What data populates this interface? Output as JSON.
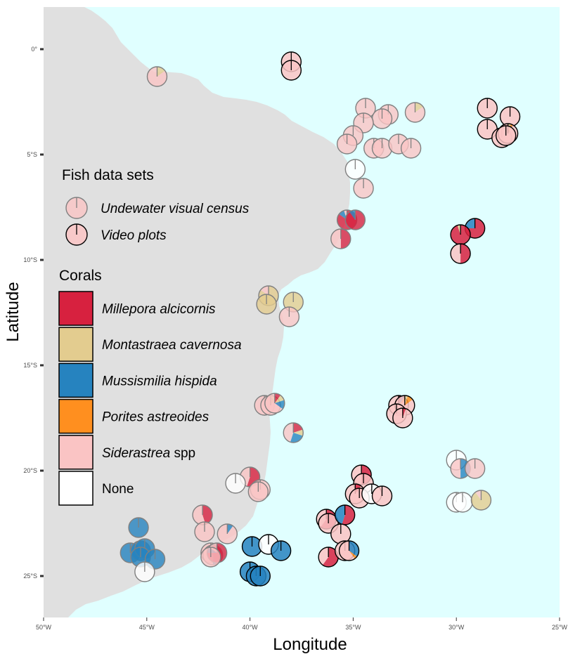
{
  "axes": {
    "xlabel": "Longitude",
    "ylabel": "Latitude",
    "x_ticks": [
      "50°W",
      "45°W",
      "40°W",
      "35°W",
      "30°W",
      "25°W"
    ],
    "y_ticks": [
      "0°",
      "5°S",
      "10°S",
      "15°S",
      "20°S",
      "25°S"
    ]
  },
  "colors": {
    "ocean": "#e0ffff",
    "land": "#e0e0e0",
    "millepora": "#d7213f",
    "montastraea": "#e3cc8f",
    "mussismilia": "#2683bf",
    "porites": "#ff8f1f",
    "siderastrea": "#fac4c4",
    "none": "#ffffff"
  },
  "legend": {
    "fish_title": "Fish data sets",
    "fish_items": [
      {
        "label": "Undewater visual census",
        "style": "uvc"
      },
      {
        "label": "Video plots",
        "style": "video"
      }
    ],
    "coral_title": "Corals",
    "coral_items": [
      {
        "italic": "Millepora alcicornis",
        "plain": "",
        "color": "#d7213f"
      },
      {
        "italic": "Montastraea cavernosa",
        "plain": "",
        "color": "#e3cc8f"
      },
      {
        "italic": "Mussismilia hispida",
        "plain": "",
        "color": "#2683bf"
      },
      {
        "italic": "Porites astreoides",
        "plain": "",
        "color": "#ff8f1f"
      },
      {
        "italic": "Siderastrea",
        "plain": " spp",
        "color": "#fac4c4"
      },
      {
        "italic": "",
        "plain": "None",
        "color": "#ffffff"
      }
    ]
  },
  "chart_data": {
    "type": "scatter",
    "xlim": [
      -50,
      -25
    ],
    "ylim": [
      -27,
      2
    ],
    "xlabel": "Longitude",
    "ylabel": "Latitude",
    "grid": false,
    "legend_placement": "left",
    "series_order": [
      "millepora",
      "montastraea",
      "mussismilia",
      "porites",
      "siderastrea",
      "none"
    ],
    "points": [
      {
        "lon": -44.5,
        "lat": -1.3,
        "ds": "uvc",
        "c": {
          "montastraea": 0.15,
          "siderastrea": 0.85
        }
      },
      {
        "lon": -38.0,
        "lat": -0.6,
        "ds": "video",
        "c": {
          "siderastrea": 1
        }
      },
      {
        "lon": -38.0,
        "lat": -1.0,
        "ds": "video",
        "c": {
          "siderastrea": 1
        }
      },
      {
        "lon": -34.4,
        "lat": -2.8,
        "ds": "uvc",
        "c": {
          "siderastrea": 1
        }
      },
      {
        "lon": -33.3,
        "lat": -3.1,
        "ds": "uvc",
        "c": {
          "siderastrea": 1
        }
      },
      {
        "lon": -32.0,
        "lat": -3.0,
        "ds": "uvc",
        "c": {
          "montastraea": 0.15,
          "siderastrea": 0.85
        }
      },
      {
        "lon": -33.6,
        "lat": -3.3,
        "ds": "uvc",
        "c": {
          "siderastrea": 1
        }
      },
      {
        "lon": -34.5,
        "lat": -3.5,
        "ds": "uvc",
        "c": {
          "siderastrea": 1
        }
      },
      {
        "lon": -35.0,
        "lat": -4.1,
        "ds": "uvc",
        "c": {
          "siderastrea": 1
        }
      },
      {
        "lon": -35.3,
        "lat": -4.5,
        "ds": "uvc",
        "c": {
          "siderastrea": 1
        }
      },
      {
        "lon": -34.0,
        "lat": -4.7,
        "ds": "uvc",
        "c": {
          "siderastrea": 1
        }
      },
      {
        "lon": -33.6,
        "lat": -4.7,
        "ds": "uvc",
        "c": {
          "siderastrea": 1
        }
      },
      {
        "lon": -32.8,
        "lat": -4.5,
        "ds": "uvc",
        "c": {
          "siderastrea": 1
        }
      },
      {
        "lon": -32.2,
        "lat": -4.7,
        "ds": "uvc",
        "c": {
          "siderastrea": 1
        }
      },
      {
        "lon": -34.9,
        "lat": -5.7,
        "ds": "uvc",
        "c": {
          "none": 1
        }
      },
      {
        "lon": -34.5,
        "lat": -6.6,
        "ds": "uvc",
        "c": {
          "siderastrea": 1
        }
      },
      {
        "lon": -28.5,
        "lat": -2.8,
        "ds": "video",
        "c": {
          "siderastrea": 1
        }
      },
      {
        "lon": -27.4,
        "lat": -3.2,
        "ds": "video",
        "c": {
          "siderastrea": 1
        }
      },
      {
        "lon": -28.5,
        "lat": -3.8,
        "ds": "video",
        "c": {
          "siderastrea": 1
        }
      },
      {
        "lon": -27.8,
        "lat": -4.2,
        "ds": "video",
        "c": {
          "siderastrea": 1
        }
      },
      {
        "lon": -27.5,
        "lat": -4.0,
        "ds": "video",
        "c": {
          "montastraea": 0.05,
          "porites": 0.03,
          "siderastrea": 0.92
        }
      },
      {
        "lon": -27.6,
        "lat": -4.1,
        "ds": "video",
        "c": {
          "siderastrea": 1
        }
      },
      {
        "lon": -35.3,
        "lat": -8.1,
        "ds": "uvc",
        "c": {
          "millepora": 0.85,
          "mussismilia": 0.1,
          "siderastrea": 0.05
        }
      },
      {
        "lon": -34.9,
        "lat": -8.1,
        "ds": "uvc",
        "c": {
          "millepora": 0.9,
          "mussismilia": 0.1
        }
      },
      {
        "lon": -35.6,
        "lat": -9.0,
        "ds": "uvc",
        "c": {
          "millepora": 0.5,
          "siderastrea": 0.5
        }
      },
      {
        "lon": -29.1,
        "lat": -8.5,
        "ds": "video",
        "c": {
          "millepora": 0.75,
          "mussismilia": 0.25
        }
      },
      {
        "lon": -29.8,
        "lat": -8.8,
        "ds": "video",
        "c": {
          "millepora": 0.95,
          "montastraea": 0.05
        }
      },
      {
        "lon": -29.8,
        "lat": -9.7,
        "ds": "video",
        "c": {
          "millepora": 0.5,
          "siderastrea": 0.5
        }
      },
      {
        "lon": -39.1,
        "lat": -11.7,
        "ds": "uvc",
        "c": {
          "montastraea": 0.85,
          "siderastrea": 0.15
        }
      },
      {
        "lon": -39.2,
        "lat": -12.1,
        "ds": "uvc",
        "c": {
          "montastraea": 1
        }
      },
      {
        "lon": -37.9,
        "lat": -12.0,
        "ds": "uvc",
        "c": {
          "montastraea": 1
        }
      },
      {
        "lon": -38.1,
        "lat": -12.7,
        "ds": "uvc",
        "c": {
          "siderastrea": 1
        }
      },
      {
        "lon": -39.3,
        "lat": -16.9,
        "ds": "uvc",
        "c": {
          "siderastrea": 1
        }
      },
      {
        "lon": -39.0,
        "lat": -16.9,
        "ds": "uvc",
        "c": {
          "montastraea": 0.1,
          "siderastrea": 0.9
        }
      },
      {
        "lon": -38.8,
        "lat": -16.8,
        "ds": "uvc",
        "c": {
          "millepora": 0.1,
          "montastraea": 0.1,
          "mussismilia": 0.15,
          "siderastrea": 0.65
        }
      },
      {
        "lon": -37.9,
        "lat": -18.2,
        "ds": "uvc",
        "c": {
          "millepora": 0.2,
          "montastraea": 0.1,
          "mussismilia": 0.25,
          "siderastrea": 0.45
        }
      },
      {
        "lon": -32.8,
        "lat": -16.9,
        "ds": "video",
        "c": {
          "millepora": 0.05,
          "mussismilia": 0.05,
          "porites": 0.05,
          "siderastrea": 0.85
        }
      },
      {
        "lon": -32.5,
        "lat": -16.9,
        "ds": "video",
        "c": {
          "montastraea": 0.05,
          "porites": 0.1,
          "siderastrea": 0.85
        }
      },
      {
        "lon": -32.9,
        "lat": -17.3,
        "ds": "video",
        "c": {
          "siderastrea": 1
        }
      },
      {
        "lon": -32.6,
        "lat": -17.5,
        "ds": "video",
        "c": {
          "millepora": 0.05,
          "siderastrea": 0.95
        }
      },
      {
        "lon": -40.0,
        "lat": -20.3,
        "ds": "uvc",
        "c": {
          "millepora": 0.55,
          "siderastrea": 0.45
        }
      },
      {
        "lon": -40.7,
        "lat": -20.6,
        "ds": "uvc",
        "c": {
          "none": 1
        }
      },
      {
        "lon": -39.5,
        "lat": -20.9,
        "ds": "uvc",
        "c": {
          "siderastrea": 1
        }
      },
      {
        "lon": -39.6,
        "lat": -21.0,
        "ds": "uvc",
        "c": {
          "siderastrea": 1
        }
      },
      {
        "lon": -34.6,
        "lat": -20.2,
        "ds": "video",
        "c": {
          "millepora": 0.5,
          "siderastrea": 0.5
        }
      },
      {
        "lon": -34.5,
        "lat": -20.6,
        "ds": "video",
        "c": {
          "siderastrea": 1
        }
      },
      {
        "lon": -34.9,
        "lat": -21.1,
        "ds": "video",
        "c": {
          "millepora": 0.1,
          "siderastrea": 0.9
        }
      },
      {
        "lon": -34.7,
        "lat": -21.3,
        "ds": "video",
        "c": {
          "siderastrea": 1
        }
      },
      {
        "lon": -34.1,
        "lat": -21.1,
        "ds": "video",
        "c": {
          "none": 1
        }
      },
      {
        "lon": -33.6,
        "lat": -21.2,
        "ds": "video",
        "c": {
          "siderastrea": 1
        }
      },
      {
        "lon": -30.0,
        "lat": -19.5,
        "ds": "uvc",
        "c": {
          "none": 1
        }
      },
      {
        "lon": -29.8,
        "lat": -19.9,
        "ds": "uvc",
        "c": {
          "mussismilia": 0.5,
          "siderastrea": 0.5
        }
      },
      {
        "lon": -29.1,
        "lat": -19.9,
        "ds": "uvc",
        "c": {
          "siderastrea": 1
        }
      },
      {
        "lon": -30.0,
        "lat": -21.5,
        "ds": "uvc",
        "c": {
          "none": 1
        }
      },
      {
        "lon": -29.7,
        "lat": -21.5,
        "ds": "uvc",
        "c": {
          "none": 1
        }
      },
      {
        "lon": -28.8,
        "lat": -21.4,
        "ds": "uvc",
        "c": {
          "montastraea": 0.9,
          "siderastrea": 0.1
        }
      },
      {
        "lon": -42.3,
        "lat": -22.1,
        "ds": "uvc",
        "c": {
          "millepora": 0.45,
          "siderastrea": 0.55
        }
      },
      {
        "lon": -42.2,
        "lat": -22.9,
        "ds": "uvc",
        "c": {
          "siderastrea": 1
        }
      },
      {
        "lon": -41.1,
        "lat": -23.0,
        "ds": "uvc",
        "c": {
          "mussismilia": 0.1,
          "siderastrea": 0.9
        }
      },
      {
        "lon": -41.9,
        "lat": -23.9,
        "ds": "uvc",
        "c": {
          "siderastrea": 1
        }
      },
      {
        "lon": -41.8,
        "lat": -24.0,
        "ds": "uvc",
        "c": {
          "millepora": 0.45,
          "mussismilia": 0.05,
          "siderastrea": 0.5
        }
      },
      {
        "lon": -41.6,
        "lat": -23.9,
        "ds": "uvc",
        "c": {
          "millepora": 0.75,
          "mussismilia": 0.1,
          "siderastrea": 0.15
        }
      },
      {
        "lon": -41.9,
        "lat": -24.1,
        "ds": "uvc",
        "c": {
          "siderastrea": 1
        }
      },
      {
        "lon": -36.3,
        "lat": -22.3,
        "ds": "video",
        "c": {
          "millepora": 0.6,
          "siderastrea": 0.4
        }
      },
      {
        "lon": -36.2,
        "lat": -22.5,
        "ds": "video",
        "c": {
          "siderastrea": 1
        }
      },
      {
        "lon": -35.4,
        "lat": -22.1,
        "ds": "video",
        "c": {
          "millepora": 0.55,
          "mussismilia": 0.45
        }
      },
      {
        "lon": -35.6,
        "lat": -23.0,
        "ds": "video",
        "c": {
          "siderastrea": 1
        }
      },
      {
        "lon": -36.2,
        "lat": -24.1,
        "ds": "video",
        "c": {
          "millepora": 0.6,
          "siderastrea": 0.4
        }
      },
      {
        "lon": -35.4,
        "lat": -23.8,
        "ds": "video",
        "c": {
          "siderastrea": 1
        }
      },
      {
        "lon": -35.2,
        "lat": -23.8,
        "ds": "video",
        "c": {
          "mussismilia": 0.35,
          "porites": 0.05,
          "siderastrea": 0.6
        }
      },
      {
        "lon": -45.4,
        "lat": -22.7,
        "ds": "uvc",
        "c": {
          "mussismilia": 1
        }
      },
      {
        "lon": -45.8,
        "lat": -23.9,
        "ds": "uvc",
        "c": {
          "mussismilia": 1
        }
      },
      {
        "lon": -45.3,
        "lat": -23.8,
        "ds": "uvc",
        "c": {
          "mussismilia": 1
        }
      },
      {
        "lon": -45.1,
        "lat": -23.7,
        "ds": "uvc",
        "c": {
          "mussismilia": 1
        }
      },
      {
        "lon": -45.3,
        "lat": -24.1,
        "ds": "uvc",
        "c": {
          "mussismilia": 1
        }
      },
      {
        "lon": -44.6,
        "lat": -24.2,
        "ds": "uvc",
        "c": {
          "mussismilia": 1
        }
      },
      {
        "lon": -45.1,
        "lat": -24.8,
        "ds": "uvc",
        "c": {
          "none": 1
        }
      },
      {
        "lon": -39.9,
        "lat": -23.6,
        "ds": "video",
        "c": {
          "mussismilia": 1
        }
      },
      {
        "lon": -39.1,
        "lat": -23.5,
        "ds": "video",
        "c": {
          "none": 1
        }
      },
      {
        "lon": -38.5,
        "lat": -23.8,
        "ds": "video",
        "c": {
          "mussismilia": 1
        }
      },
      {
        "lon": -40.0,
        "lat": -24.8,
        "ds": "video",
        "c": {
          "mussismilia": 1
        }
      },
      {
        "lon": -39.7,
        "lat": -25.0,
        "ds": "video",
        "c": {
          "mussismilia": 1
        }
      },
      {
        "lon": -39.5,
        "lat": -25.0,
        "ds": "video",
        "c": {
          "mussismilia": 1
        }
      }
    ]
  }
}
